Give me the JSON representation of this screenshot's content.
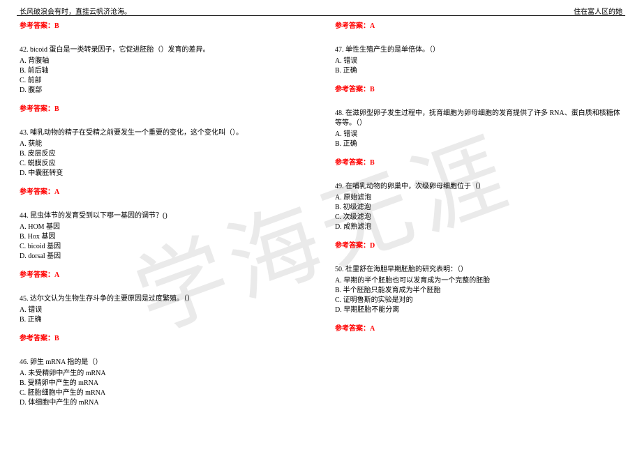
{
  "header": {
    "left": "长风破浪会有时，直挂云帆济沧海。",
    "right": "住在富人区的她"
  },
  "watermark": "学海无涯",
  "answer_label": "参考答案：",
  "left_col": [
    {
      "answer": "B"
    },
    {
      "q": "42. bicoid 蛋白是一类转录因子，它促进胚胎（）发育的差异。",
      "opts": [
        "A. 背腹轴",
        "B. 前后轴",
        "C. 前部",
        "D. 腹部"
      ],
      "answer": "B"
    },
    {
      "q": "43. 哺乳动物的精子在受精之前要发生一个重要的变化，这个变化叫（）。",
      "opts": [
        "A. 获能",
        "B. 皮层反应",
        "C. 蜕膜反应",
        "D. 中囊胚转变"
      ],
      "answer": "A"
    },
    {
      "q": "44. 昆虫体节的发育受到以下哪一基因的调节？()",
      "opts": [
        "A. HOM 基因",
        "B. Hox 基因",
        "C. bicoid 基因",
        "D. dorsal 基因"
      ],
      "answer": "A"
    },
    {
      "q": "45. 达尔文认为生物生存斗争的主要原因是过度繁殖。（）",
      "opts": [
        "A. 错误",
        "B. 正确"
      ],
      "answer": "B"
    },
    {
      "q": "46. 卵生 mRNA 指的是（）",
      "opts": [
        "A. 未受精卵中产生的 mRNA",
        "B. 受精卵中产生的 mRNA",
        "C. 胚胎细胞中产生的 mRNA",
        "D. 体细胞中产生的 mRNA"
      ]
    }
  ],
  "right_col": [
    {
      "answer": "A"
    },
    {
      "q": "47. 单性生殖产生的是单倍体。（）",
      "opts": [
        "A. 错误",
        "B. 正确"
      ],
      "answer": "B"
    },
    {
      "q": "48. 在滋卵型卵子发生过程中，抚育细胞为卵母细胞的发育提供了许多 RNA、蛋白质和核糖体等等。（）",
      "opts": [
        "A. 错误",
        "B. 正确"
      ],
      "answer": "B"
    },
    {
      "q": "49. 在哺乳动物的卵巢中，次级卵母细胞位于（）",
      "opts": [
        "A. 原始滤泡",
        "B. 初级滤泡",
        "C. 次级滤泡",
        "D. 成熟滤泡"
      ],
      "answer": "D"
    },
    {
      "q": "50. 杜里舒在海胆早期胚胎的研究表明：（）",
      "opts": [
        "A. 早期的半个胚胎也可以发育成为一个完整的胚胎",
        "B. 半个胚胎只能发育成为半个胚胎",
        "C. 证明鲁斯的实验是对的",
        "D. 早期胚胎不能分离"
      ],
      "answer": "A"
    }
  ],
  "colors": {
    "text": "#000000",
    "answer": "#ff0000",
    "background": "#ffffff"
  }
}
